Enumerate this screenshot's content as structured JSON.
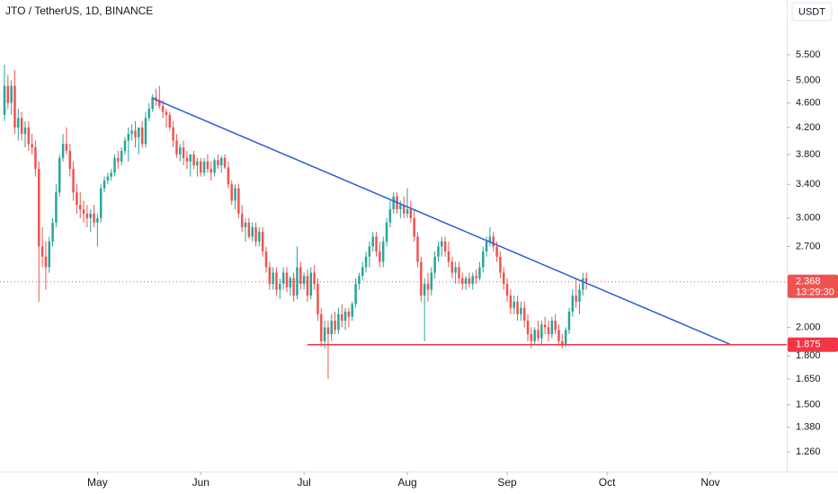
{
  "chart_data": {
    "type": "candlestick",
    "title": "JTO / TetherUS, 1D, BINANCE",
    "currency": "USDT",
    "countdown": "13:29:30",
    "up_color": "#26a69a",
    "down_color": "#ef5350",
    "log_scale": true,
    "grid": false,
    "ylim": [
      1.171,
      6.74
    ],
    "yticks": [
      {
        "value": 5.5,
        "label": "5.500"
      },
      {
        "value": 5,
        "label": "5.000"
      },
      {
        "value": 4.6,
        "label": "4.600"
      },
      {
        "value": 4.2,
        "label": "4.200"
      },
      {
        "value": 3.8,
        "label": "3.800"
      },
      {
        "value": 3.4,
        "label": "3.400"
      },
      {
        "value": 3,
        "label": "3.000"
      },
      {
        "value": 2.7,
        "label": "2.700"
      },
      {
        "value": 2,
        "label": "2.000"
      },
      {
        "value": 1.8,
        "label": "1.800"
      },
      {
        "value": 1.65,
        "label": "1.650"
      },
      {
        "value": 1.5,
        "label": "1.500"
      },
      {
        "value": 1.38,
        "label": "1.380"
      },
      {
        "value": 1.26,
        "label": "1.260"
      }
    ],
    "xlim": [
      -1.3,
      227.2
    ],
    "xticks": [
      {
        "value": 27,
        "label": "May"
      },
      {
        "value": 57,
        "label": "Jun"
      },
      {
        "value": 87,
        "label": "Jul"
      },
      {
        "value": 117,
        "label": "Aug"
      },
      {
        "value": 146,
        "label": "Sep"
      },
      {
        "value": 175,
        "label": "Oct"
      },
      {
        "value": 205,
        "label": "Nov"
      }
    ],
    "lines": [
      {
        "x": [
          43,
          211
        ],
        "y": [
          4.68,
          1.875
        ],
        "color": "#2a5bd7"
      },
      {
        "x": [
          88,
          227.2
        ],
        "y": [
          1.875,
          1.875
        ],
        "color": "#f23645"
      }
    ],
    "candles": [
      [
        4.4,
        5.3,
        4.3,
        4.9
      ],
      [
        4.9,
        5.1,
        4.5,
        4.6
      ],
      [
        4.6,
        5.0,
        4.4,
        4.9
      ],
      [
        4.9,
        5.2,
        4.1,
        4.2
      ],
      [
        4.2,
        4.5,
        4.0,
        4.35
      ],
      [
        4.35,
        4.45,
        4.0,
        4.1
      ],
      [
        4.1,
        4.3,
        3.9,
        4.2
      ],
      [
        4.2,
        4.3,
        3.85,
        3.95
      ],
      [
        3.95,
        4.1,
        3.8,
        3.9
      ],
      [
        3.9,
        4.0,
        3.5,
        3.6
      ],
      [
        3.6,
        3.7,
        2.2,
        2.7
      ],
      [
        2.7,
        2.9,
        2.5,
        2.6
      ],
      [
        2.6,
        2.75,
        2.3,
        2.5
      ],
      [
        2.5,
        2.8,
        2.45,
        2.75
      ],
      [
        2.75,
        3.0,
        2.7,
        2.95
      ],
      [
        2.95,
        3.4,
        2.9,
        3.3
      ],
      [
        3.3,
        3.8,
        3.25,
        3.75
      ],
      [
        3.75,
        4.1,
        3.7,
        3.95
      ],
      [
        3.95,
        4.2,
        3.8,
        3.85
      ],
      [
        3.85,
        3.95,
        3.5,
        3.6
      ],
      [
        3.6,
        3.7,
        3.2,
        3.3
      ],
      [
        3.3,
        3.4,
        3.05,
        3.15
      ],
      [
        3.15,
        3.3,
        3.0,
        3.1
      ],
      [
        3.1,
        3.2,
        2.95,
        3.05
      ],
      [
        3.05,
        3.15,
        2.9,
        3.0
      ],
      [
        3.0,
        3.1,
        2.85,
        3.05
      ],
      [
        3.05,
        3.15,
        2.9,
        2.95
      ],
      [
        2.95,
        3.05,
        2.7,
        3.0
      ],
      [
        3.0,
        3.4,
        2.95,
        3.35
      ],
      [
        3.35,
        3.5,
        3.3,
        3.45
      ],
      [
        3.45,
        3.55,
        3.4,
        3.5
      ],
      [
        3.5,
        3.6,
        3.45,
        3.55
      ],
      [
        3.55,
        3.8,
        3.5,
        3.75
      ],
      [
        3.75,
        3.85,
        3.6,
        3.7
      ],
      [
        3.7,
        3.9,
        3.65,
        3.85
      ],
      [
        3.85,
        4.05,
        3.8,
        4.0
      ],
      [
        4.0,
        4.2,
        3.7,
        4.1
      ],
      [
        4.1,
        4.25,
        4.0,
        4.15
      ],
      [
        4.15,
        4.3,
        3.9,
        4.05
      ],
      [
        4.05,
        4.2,
        3.8,
        4.2
      ],
      [
        4.2,
        4.3,
        3.9,
        3.95
      ],
      [
        3.95,
        4.45,
        3.9,
        4.35
      ],
      [
        4.35,
        4.6,
        4.3,
        4.5
      ],
      [
        4.5,
        4.75,
        4.45,
        4.7
      ],
      [
        4.7,
        4.85,
        4.55,
        4.65
      ],
      [
        4.65,
        4.9,
        4.5,
        4.55
      ],
      [
        4.55,
        4.65,
        4.35,
        4.45
      ],
      [
        4.45,
        4.5,
        4.2,
        4.4
      ],
      [
        4.4,
        4.45,
        4.15,
        4.2
      ],
      [
        4.2,
        4.3,
        3.9,
        4.0
      ],
      [
        4.0,
        4.1,
        3.75,
        3.8
      ],
      [
        3.8,
        3.95,
        3.7,
        3.9
      ],
      [
        3.9,
        4.0,
        3.65,
        3.75
      ],
      [
        3.75,
        3.85,
        3.6,
        3.7
      ],
      [
        3.7,
        3.8,
        3.5,
        3.8
      ],
      [
        3.8,
        3.85,
        3.6,
        3.65
      ],
      [
        3.65,
        3.75,
        3.5,
        3.7
      ],
      [
        3.7,
        3.75,
        3.5,
        3.55
      ],
      [
        3.55,
        3.75,
        3.5,
        3.7
      ],
      [
        3.7,
        3.8,
        3.55,
        3.6
      ],
      [
        3.6,
        3.7,
        3.45,
        3.55
      ],
      [
        3.55,
        3.75,
        3.5,
        3.72
      ],
      [
        3.72,
        3.8,
        3.6,
        3.65
      ],
      [
        3.65,
        3.78,
        3.55,
        3.75
      ],
      [
        3.75,
        3.8,
        3.6,
        3.62
      ],
      [
        3.62,
        3.7,
        3.35,
        3.4
      ],
      [
        3.4,
        3.45,
        3.15,
        3.2
      ],
      [
        3.2,
        3.4,
        3.1,
        3.35
      ],
      [
        3.35,
        3.4,
        3.0,
        3.05
      ],
      [
        3.05,
        3.15,
        2.85,
        2.9
      ],
      [
        2.9,
        3.0,
        2.75,
        2.95
      ],
      [
        2.95,
        3.0,
        2.78,
        2.8
      ],
      [
        2.8,
        2.95,
        2.75,
        2.9
      ],
      [
        2.9,
        2.95,
        2.7,
        2.75
      ],
      [
        2.75,
        2.9,
        2.7,
        2.85
      ],
      [
        2.85,
        2.9,
        2.6,
        2.65
      ],
      [
        2.65,
        2.7,
        2.45,
        2.5
      ],
      [
        2.5,
        2.55,
        2.3,
        2.35
      ],
      [
        2.35,
        2.5,
        2.3,
        2.45
      ],
      [
        2.45,
        2.5,
        2.25,
        2.3
      ],
      [
        2.3,
        2.4,
        2.22,
        2.35
      ],
      [
        2.35,
        2.5,
        2.3,
        2.45
      ],
      [
        2.45,
        2.5,
        2.28,
        2.32
      ],
      [
        2.32,
        2.42,
        2.25,
        2.4
      ],
      [
        2.4,
        2.45,
        2.2,
        2.25
      ],
      [
        2.25,
        2.7,
        2.22,
        2.5
      ],
      [
        2.5,
        2.55,
        2.3,
        2.35
      ],
      [
        2.35,
        2.45,
        2.3,
        2.42
      ],
      [
        2.42,
        2.48,
        2.2,
        2.25
      ],
      [
        2.25,
        2.5,
        2.22,
        2.45
      ],
      [
        2.45,
        2.52,
        2.3,
        2.35
      ],
      [
        2.35,
        2.4,
        2.05,
        2.1
      ],
      [
        2.1,
        2.15,
        1.86,
        1.9
      ],
      [
        1.9,
        2.05,
        1.85,
        2.0
      ],
      [
        2.0,
        2.05,
        1.65,
        1.95
      ],
      [
        1.95,
        2.1,
        1.9,
        2.05
      ],
      [
        2.05,
        2.12,
        1.95,
        1.98
      ],
      [
        1.98,
        2.15,
        1.95,
        2.1
      ],
      [
        2.1,
        2.18,
        2.0,
        2.05
      ],
      [
        2.05,
        2.15,
        1.98,
        2.12
      ],
      [
        2.12,
        2.15,
        2.0,
        2.08
      ],
      [
        2.08,
        2.2,
        2.05,
        2.18
      ],
      [
        2.18,
        2.4,
        2.15,
        2.35
      ],
      [
        2.35,
        2.45,
        2.3,
        2.42
      ],
      [
        2.42,
        2.55,
        2.38,
        2.5
      ],
      [
        2.5,
        2.65,
        2.45,
        2.6
      ],
      [
        2.6,
        2.75,
        2.5,
        2.7
      ],
      [
        2.7,
        2.85,
        2.65,
        2.8
      ],
      [
        2.8,
        2.85,
        2.6,
        2.65
      ],
      [
        2.65,
        2.75,
        2.5,
        2.55
      ],
      [
        2.55,
        2.8,
        2.5,
        2.75
      ],
      [
        2.75,
        3.0,
        2.7,
        2.95
      ],
      [
        2.95,
        3.2,
        2.9,
        3.1
      ],
      [
        3.1,
        3.3,
        3.05,
        3.25
      ],
      [
        3.25,
        3.3,
        3.05,
        3.1
      ],
      [
        3.1,
        3.2,
        3.0,
        3.15
      ],
      [
        3.15,
        3.25,
        3.0,
        3.05
      ],
      [
        3.05,
        3.35,
        3.0,
        3.1
      ],
      [
        3.1,
        3.2,
        2.95,
        3.0
      ],
      [
        3.0,
        3.1,
        2.75,
        2.8
      ],
      [
        2.8,
        2.85,
        2.5,
        2.55
      ],
      [
        2.55,
        2.6,
        2.2,
        2.25
      ],
      [
        2.25,
        2.4,
        1.9,
        2.35
      ],
      [
        2.35,
        2.45,
        2.2,
        2.3
      ],
      [
        2.3,
        2.5,
        2.25,
        2.45
      ],
      [
        2.45,
        2.65,
        2.4,
        2.6
      ],
      [
        2.6,
        2.75,
        2.55,
        2.7
      ],
      [
        2.7,
        2.8,
        2.6,
        2.75
      ],
      [
        2.75,
        2.8,
        2.6,
        2.65
      ],
      [
        2.65,
        2.75,
        2.5,
        2.55
      ],
      [
        2.55,
        2.6,
        2.4,
        2.45
      ],
      [
        2.45,
        2.55,
        2.35,
        2.5
      ],
      [
        2.5,
        2.55,
        2.35,
        2.4
      ],
      [
        2.4,
        2.45,
        2.3,
        2.35
      ],
      [
        2.35,
        2.42,
        2.3,
        2.4
      ],
      [
        2.4,
        2.45,
        2.32,
        2.35
      ],
      [
        2.35,
        2.45,
        2.3,
        2.42
      ],
      [
        2.42,
        2.48,
        2.35,
        2.4
      ],
      [
        2.4,
        2.55,
        2.38,
        2.5
      ],
      [
        2.5,
        2.7,
        2.45,
        2.65
      ],
      [
        2.65,
        2.8,
        2.6,
        2.75
      ],
      [
        2.75,
        2.9,
        2.7,
        2.8
      ],
      [
        2.8,
        2.85,
        2.65,
        2.7
      ],
      [
        2.7,
        2.75,
        2.55,
        2.6
      ],
      [
        2.6,
        2.65,
        2.4,
        2.45
      ],
      [
        2.45,
        2.5,
        2.3,
        2.35
      ],
      [
        2.35,
        2.4,
        2.2,
        2.25
      ],
      [
        2.25,
        2.3,
        2.1,
        2.15
      ],
      [
        2.15,
        2.25,
        2.1,
        2.2
      ],
      [
        2.2,
        2.25,
        2.05,
        2.1
      ],
      [
        2.1,
        2.2,
        2.05,
        2.15
      ],
      [
        2.15,
        2.2,
        2.0,
        2.05
      ],
      [
        2.05,
        2.1,
        1.9,
        1.95
      ],
      [
        1.95,
        2.0,
        1.85,
        1.9
      ],
      [
        1.9,
        2.0,
        1.87,
        1.98
      ],
      [
        1.98,
        2.05,
        1.9,
        1.92
      ],
      [
        1.92,
        2.05,
        1.88,
        2.02
      ],
      [
        2.02,
        2.08,
        1.95,
        2.0
      ],
      [
        2.0,
        2.05,
        1.9,
        1.95
      ],
      [
        1.95,
        2.08,
        1.92,
        2.05
      ],
      [
        2.05,
        2.1,
        1.95,
        1.98
      ],
      [
        1.98,
        2.02,
        1.88,
        1.9
      ],
      [
        1.9,
        1.95,
        1.85,
        1.88
      ],
      [
        1.88,
        2.0,
        1.86,
        1.98
      ],
      [
        1.98,
        2.15,
        1.95,
        2.12
      ],
      [
        2.12,
        2.3,
        2.08,
        2.25
      ],
      [
        2.25,
        2.4,
        2.15,
        2.2
      ],
      [
        2.2,
        2.35,
        2.1,
        2.3
      ],
      [
        2.3,
        2.45,
        2.25,
        2.4
      ],
      [
        2.4,
        2.45,
        2.3,
        2.368
      ]
    ]
  }
}
